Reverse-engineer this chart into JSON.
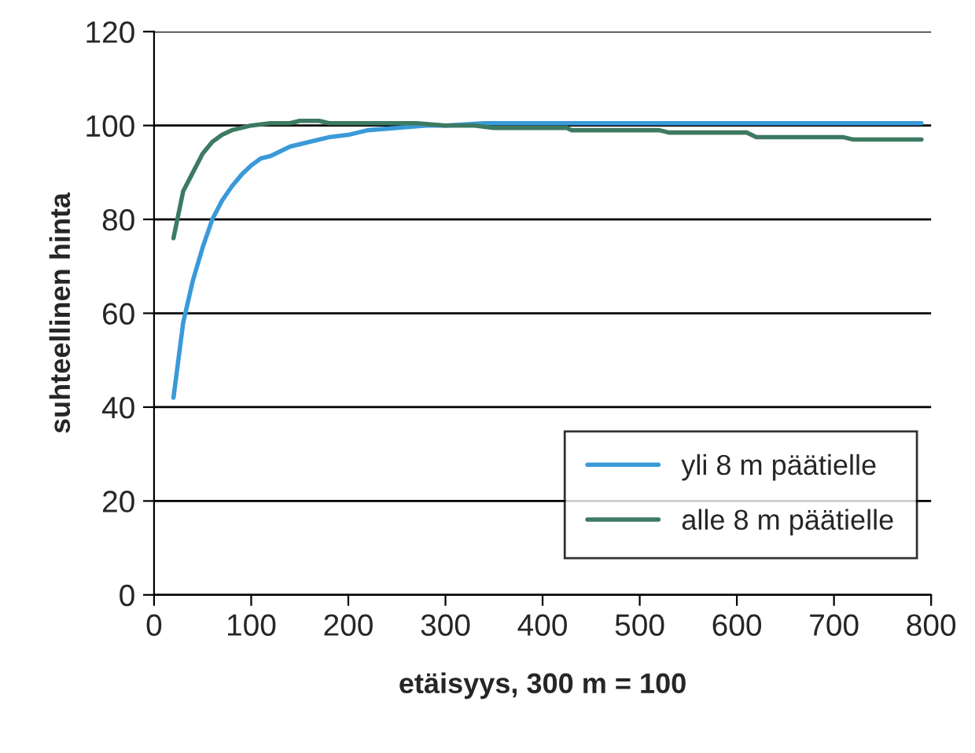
{
  "chart_data": {
    "type": "line",
    "xlabel": "etäisyys, 300 m = 100",
    "ylabel": "suhteellinen hinta",
    "xlim": [
      0,
      800
    ],
    "ylim": [
      0,
      120
    ],
    "xticks": [
      0,
      100,
      200,
      300,
      400,
      500,
      600,
      700,
      800
    ],
    "yticks": [
      0,
      20,
      40,
      60,
      80,
      100,
      120
    ],
    "grid": "y",
    "legend": "bottom right",
    "marker": "none",
    "line_style": "solid",
    "series": [
      {
        "name": "yli 8 m päätielle",
        "color": "#3a9ad9",
        "x": [
          20,
          30,
          40,
          50,
          60,
          70,
          80,
          90,
          100,
          110,
          120,
          130,
          140,
          160,
          180,
          200,
          220,
          250,
          280,
          300,
          340,
          500,
          790
        ],
        "values": [
          42,
          58,
          67,
          74,
          80,
          84,
          87,
          89.5,
          91.5,
          93,
          93.5,
          94.5,
          95.5,
          96.5,
          97.5,
          98,
          99,
          99.5,
          100,
          100,
          100.5,
          100.5,
          100.5
        ]
      },
      {
        "name": "alle 8 m päätielle",
        "color": "#3d7a62",
        "x": [
          20,
          30,
          40,
          50,
          60,
          70,
          80,
          90,
          100,
          120,
          140,
          150,
          170,
          180,
          270,
          300,
          330,
          350,
          425,
          430,
          520,
          530,
          610,
          620,
          710,
          720,
          790
        ],
        "values": [
          76,
          86,
          90,
          94,
          96.5,
          98,
          99,
          99.5,
          100,
          100.5,
          100.5,
          101,
          101,
          100.5,
          100.5,
          100,
          100,
          99.5,
          99.5,
          99,
          99,
          98.5,
          98.5,
          97.5,
          97.5,
          97,
          97
        ]
      }
    ]
  }
}
